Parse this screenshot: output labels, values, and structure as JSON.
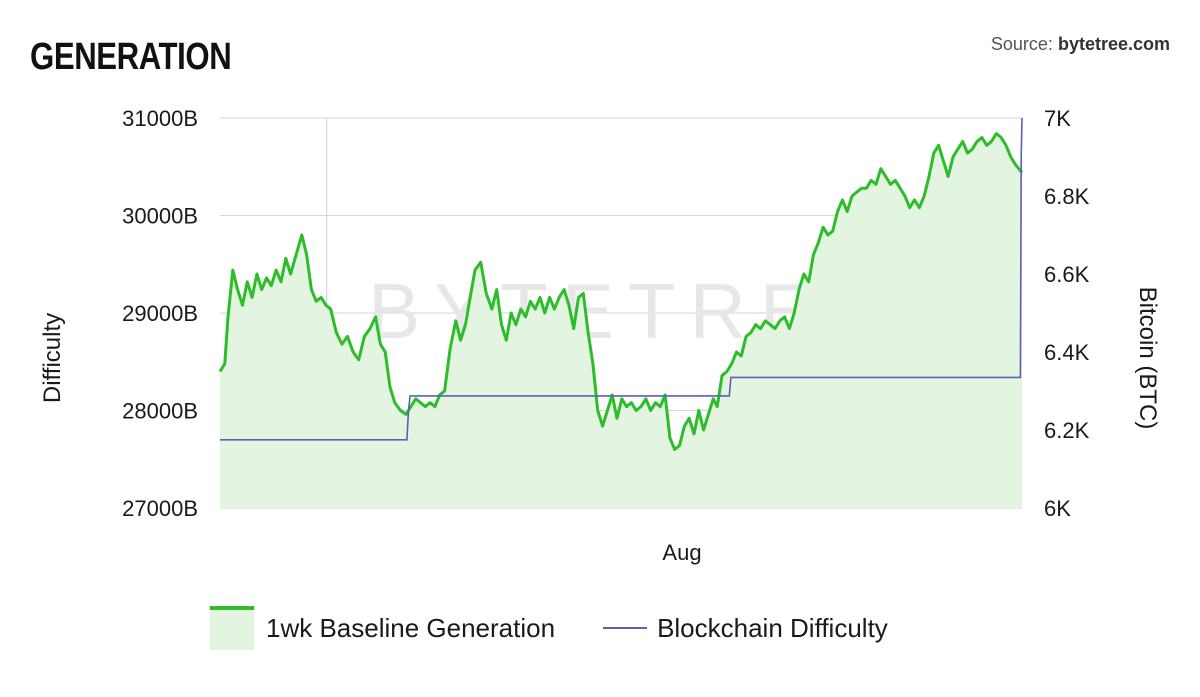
{
  "header": {
    "title": "GENERATION",
    "source_prefix": "Source:",
    "source_name": "bytetree.com"
  },
  "watermark": "BYTETREE",
  "chart_data": {
    "type": "line",
    "title": "GENERATION",
    "xlabel": "",
    "x_ticks": [
      "Aug"
    ],
    "x_range": [
      0,
      100
    ],
    "ylabel_left": "Difficulty",
    "ylabel_right": "Bitcoin (BTC)",
    "left_axis": {
      "ticks": [
        "27000B",
        "28000B",
        "29000B",
        "30000B",
        "31000B"
      ],
      "range": [
        27000,
        31000
      ]
    },
    "right_axis": {
      "ticks": [
        "6K",
        "6.2K",
        "6.4K",
        "6.6K",
        "6.8K",
        "7K"
      ],
      "range": [
        6000,
        7000
      ]
    },
    "grid": true,
    "legend_position": "bottom",
    "colors": {
      "generation_line": "#2ebd2a",
      "generation_fill": "#e3f5e1",
      "difficulty_line": "#5b5fb5"
    },
    "series": [
      {
        "name": "1wk Baseline Generation",
        "axis": "right",
        "kind": "area",
        "points": [
          [
            0,
            6350
          ],
          [
            0.6,
            6370
          ],
          [
            1,
            6490
          ],
          [
            1.6,
            6610
          ],
          [
            2.2,
            6560
          ],
          [
            2.8,
            6520
          ],
          [
            3.4,
            6580
          ],
          [
            4,
            6540
          ],
          [
            4.6,
            6600
          ],
          [
            5.2,
            6560
          ],
          [
            5.8,
            6590
          ],
          [
            6.4,
            6570
          ],
          [
            7,
            6610
          ],
          [
            7.6,
            6580
          ],
          [
            8.2,
            6640
          ],
          [
            8.8,
            6600
          ],
          [
            9.5,
            6650
          ],
          [
            10.2,
            6700
          ],
          [
            10.8,
            6650
          ],
          [
            11.4,
            6560
          ],
          [
            12,
            6530
          ],
          [
            12.6,
            6540
          ],
          [
            13.2,
            6520
          ],
          [
            13.8,
            6510
          ],
          [
            14.5,
            6450
          ],
          [
            15.2,
            6420
          ],
          [
            15.9,
            6440
          ],
          [
            16.6,
            6400
          ],
          [
            17.3,
            6380
          ],
          [
            18,
            6440
          ],
          [
            18.7,
            6460
          ],
          [
            19.4,
            6490
          ],
          [
            20,
            6420
          ],
          [
            20.6,
            6400
          ],
          [
            21.2,
            6310
          ],
          [
            21.8,
            6270
          ],
          [
            22.5,
            6250
          ],
          [
            23.2,
            6240
          ],
          [
            23.8,
            6260
          ],
          [
            24.4,
            6280
          ],
          [
            25,
            6270
          ],
          [
            25.6,
            6260
          ],
          [
            26.2,
            6270
          ],
          [
            26.8,
            6260
          ],
          [
            27.4,
            6290
          ],
          [
            28,
            6300
          ],
          [
            28.7,
            6410
          ],
          [
            29.4,
            6480
          ],
          [
            30,
            6430
          ],
          [
            30.6,
            6470
          ],
          [
            31.2,
            6540
          ],
          [
            31.8,
            6610
          ],
          [
            32.5,
            6630
          ],
          [
            33.2,
            6550
          ],
          [
            33.9,
            6510
          ],
          [
            34.5,
            6560
          ],
          [
            35.1,
            6470
          ],
          [
            35.7,
            6430
          ],
          [
            36.3,
            6500
          ],
          [
            36.9,
            6470
          ],
          [
            37.5,
            6510
          ],
          [
            38.1,
            6490
          ],
          [
            38.7,
            6530
          ],
          [
            39.3,
            6510
          ],
          [
            39.9,
            6540
          ],
          [
            40.5,
            6500
          ],
          [
            41.1,
            6540
          ],
          [
            41.7,
            6510
          ],
          [
            42.3,
            6540
          ],
          [
            42.9,
            6560
          ],
          [
            43.5,
            6520
          ],
          [
            44.1,
            6460
          ],
          [
            44.7,
            6540
          ],
          [
            45.3,
            6550
          ],
          [
            45.9,
            6450
          ],
          [
            46.5,
            6370
          ],
          [
            47.1,
            6250
          ],
          [
            47.7,
            6210
          ],
          [
            48.3,
            6250
          ],
          [
            48.9,
            6290
          ],
          [
            49.5,
            6230
          ],
          [
            50.1,
            6280
          ],
          [
            50.7,
            6260
          ],
          [
            51.3,
            6270
          ],
          [
            51.9,
            6250
          ],
          [
            52.5,
            6260
          ],
          [
            53.1,
            6280
          ],
          [
            53.7,
            6250
          ],
          [
            54.3,
            6270
          ],
          [
            54.9,
            6260
          ],
          [
            55.5,
            6290
          ],
          [
            56.1,
            6180
          ],
          [
            56.7,
            6150
          ],
          [
            57.3,
            6160
          ],
          [
            57.9,
            6210
          ],
          [
            58.5,
            6230
          ],
          [
            59.1,
            6190
          ],
          [
            59.7,
            6250
          ],
          [
            60.3,
            6200
          ],
          [
            60.9,
            6240
          ],
          [
            61.5,
            6280
          ],
          [
            62,
            6260
          ],
          [
            62.6,
            6340
          ],
          [
            63.2,
            6350
          ],
          [
            63.8,
            6370
          ],
          [
            64.4,
            6400
          ],
          [
            65,
            6390
          ],
          [
            65.6,
            6440
          ],
          [
            66.2,
            6450
          ],
          [
            66.8,
            6470
          ],
          [
            67.4,
            6460
          ],
          [
            68,
            6480
          ],
          [
            68.6,
            6470
          ],
          [
            69.2,
            6460
          ],
          [
            69.8,
            6480
          ],
          [
            70.4,
            6490
          ],
          [
            71,
            6460
          ],
          [
            71.6,
            6500
          ],
          [
            72.2,
            6560
          ],
          [
            72.8,
            6600
          ],
          [
            73.4,
            6580
          ],
          [
            74,
            6650
          ],
          [
            74.6,
            6680
          ],
          [
            75.2,
            6720
          ],
          [
            75.8,
            6700
          ],
          [
            76.4,
            6710
          ],
          [
            77,
            6760
          ],
          [
            77.6,
            6790
          ],
          [
            78.2,
            6760
          ],
          [
            78.8,
            6800
          ],
          [
            79.4,
            6810
          ],
          [
            80,
            6820
          ],
          [
            80.6,
            6820
          ],
          [
            81.2,
            6840
          ],
          [
            81.8,
            6830
          ],
          [
            82.4,
            6870
          ],
          [
            83,
            6850
          ],
          [
            83.6,
            6830
          ],
          [
            84.2,
            6840
          ],
          [
            84.8,
            6820
          ],
          [
            85.4,
            6800
          ],
          [
            86,
            6770
          ],
          [
            86.6,
            6790
          ],
          [
            87.2,
            6770
          ],
          [
            87.8,
            6800
          ],
          [
            88.4,
            6850
          ],
          [
            89,
            6910
          ],
          [
            89.6,
            6930
          ],
          [
            90.2,
            6890
          ],
          [
            90.8,
            6850
          ],
          [
            91.4,
            6900
          ],
          [
            92,
            6920
          ],
          [
            92.6,
            6940
          ],
          [
            93.2,
            6910
          ],
          [
            93.8,
            6920
          ],
          [
            94.4,
            6940
          ],
          [
            95,
            6950
          ],
          [
            95.6,
            6930
          ],
          [
            96.2,
            6940
          ],
          [
            96.8,
            6960
          ],
          [
            97.4,
            6950
          ],
          [
            98,
            6930
          ],
          [
            98.6,
            6900
          ],
          [
            99.2,
            6880
          ],
          [
            100,
            6860
          ]
        ]
      },
      {
        "name": "Blockchain Difficulty",
        "axis": "left",
        "kind": "step",
        "points": [
          [
            0,
            27700
          ],
          [
            23.3,
            27700
          ],
          [
            23.5,
            28000
          ],
          [
            23.7,
            28150
          ],
          [
            23.9,
            28150
          ],
          [
            63.5,
            28150
          ],
          [
            63.7,
            28340
          ],
          [
            99.8,
            28340
          ],
          [
            99.9,
            30600
          ],
          [
            100,
            31000
          ]
        ]
      }
    ]
  },
  "legend": {
    "generation_label": "1wk Baseline Generation",
    "difficulty_label": "Blockchain Difficulty"
  }
}
